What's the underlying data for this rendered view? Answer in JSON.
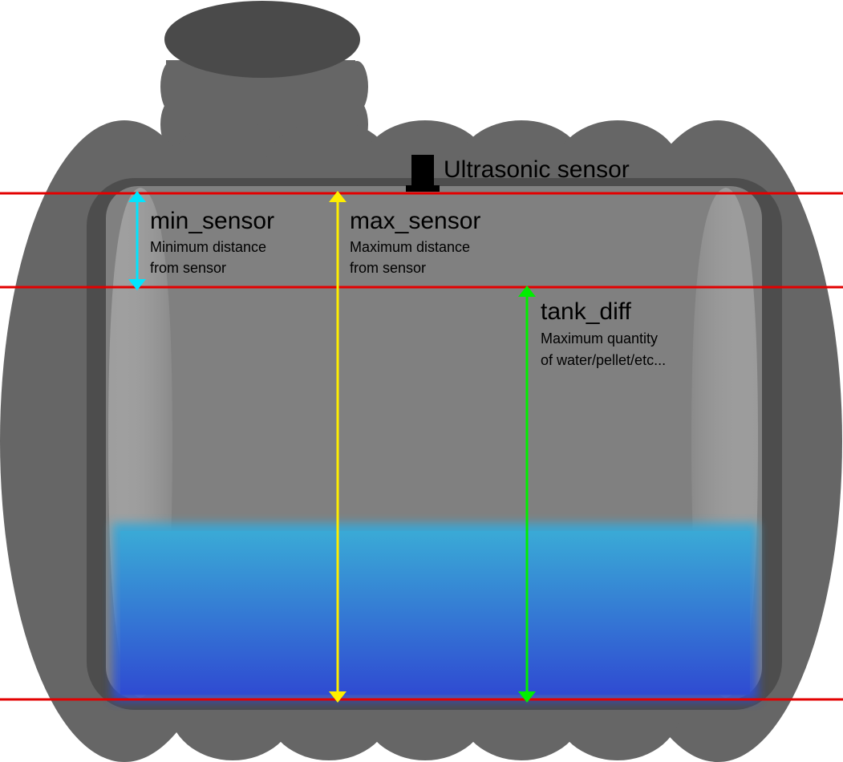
{
  "diagram": {
    "sensor_label": "Ultrasonic sensor",
    "colors": {
      "tank_outer": "#666666",
      "tank_neck_top": "#4a4a4a",
      "tank_rim": "#4d4d4d",
      "tank_inner": "#808080",
      "reference_line": "#e30000",
      "min_sensor_arrow": "#00e5ff",
      "max_sensor_arrow": "#ffee00",
      "tank_diff_arrow": "#00ee00",
      "water_top": "#3aaad6",
      "water_bottom": "#2f4fd4",
      "sensor": "#000000"
    },
    "measures": [
      {
        "id": "min_sensor",
        "title": "min_sensor",
        "description_lines": [
          "Minimum distance",
          "from sensor"
        ]
      },
      {
        "id": "max_sensor",
        "title": "max_sensor",
        "description_lines": [
          "Maximum distance",
          "from sensor"
        ]
      },
      {
        "id": "tank_diff",
        "title": "tank_diff",
        "description_lines": [
          "Maximum quantity",
          "of water/pellet/etc..."
        ]
      }
    ]
  }
}
